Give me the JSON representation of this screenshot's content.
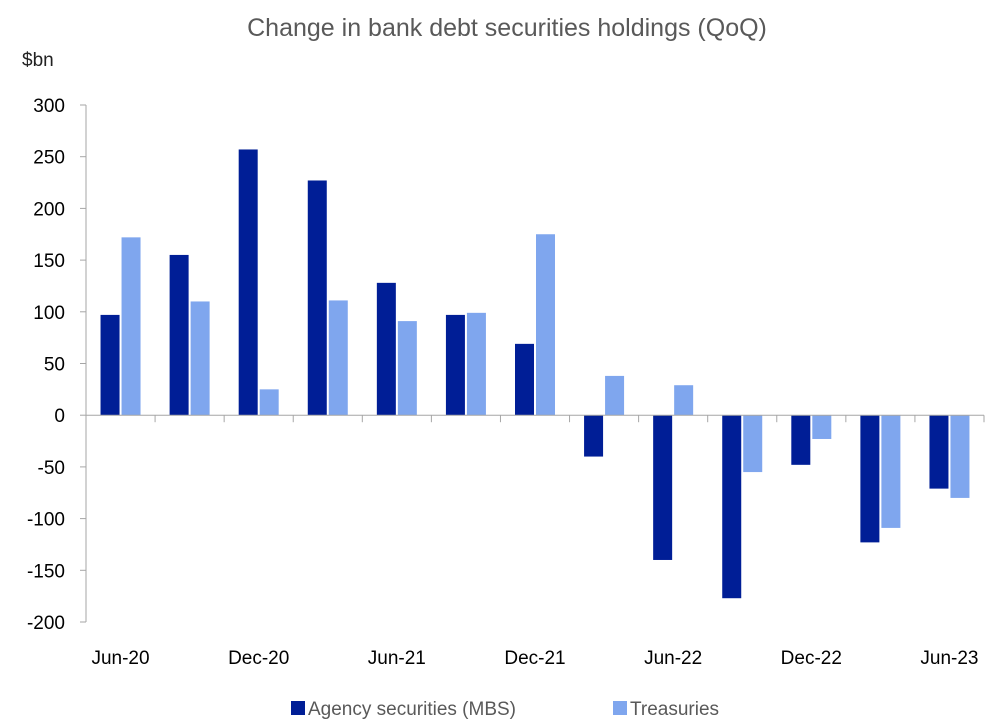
{
  "chart_data": {
    "type": "bar",
    "title": "Change in bank debt securities holdings (QoQ)",
    "ylabel": "$bn",
    "xlabel": "",
    "ylim": [
      -200,
      300
    ],
    "yticks": [
      300,
      250,
      200,
      150,
      100,
      50,
      0,
      -50,
      -100,
      -150,
      -200
    ],
    "categories": [
      "Jun-20",
      "Sep-20",
      "Dec-20",
      "Mar-21",
      "Jun-21",
      "Sep-21",
      "Dec-21",
      "Mar-22",
      "Jun-22",
      "Sep-22",
      "Dec-22",
      "Mar-23",
      "Jun-23"
    ],
    "xtick_labels": [
      "Jun-20",
      "",
      "Dec-20",
      "",
      "Jun-21",
      "",
      "Dec-21",
      "",
      "Jun-22",
      "",
      "Dec-22",
      "",
      "Jun-23"
    ],
    "series": [
      {
        "name": "Agency securities (MBS)",
        "color": "#001E96",
        "values": [
          97,
          155,
          257,
          227,
          128,
          97,
          69,
          -40,
          -140,
          -177,
          -48,
          -123,
          -71
        ]
      },
      {
        "name": "Treasuries",
        "color": "#7FA6EE",
        "values": [
          172,
          110,
          25,
          111,
          91,
          99,
          175,
          38,
          29,
          -55,
          -23,
          -109,
          -80
        ]
      }
    ],
    "grid": false,
    "legend_position": "bottom"
  }
}
